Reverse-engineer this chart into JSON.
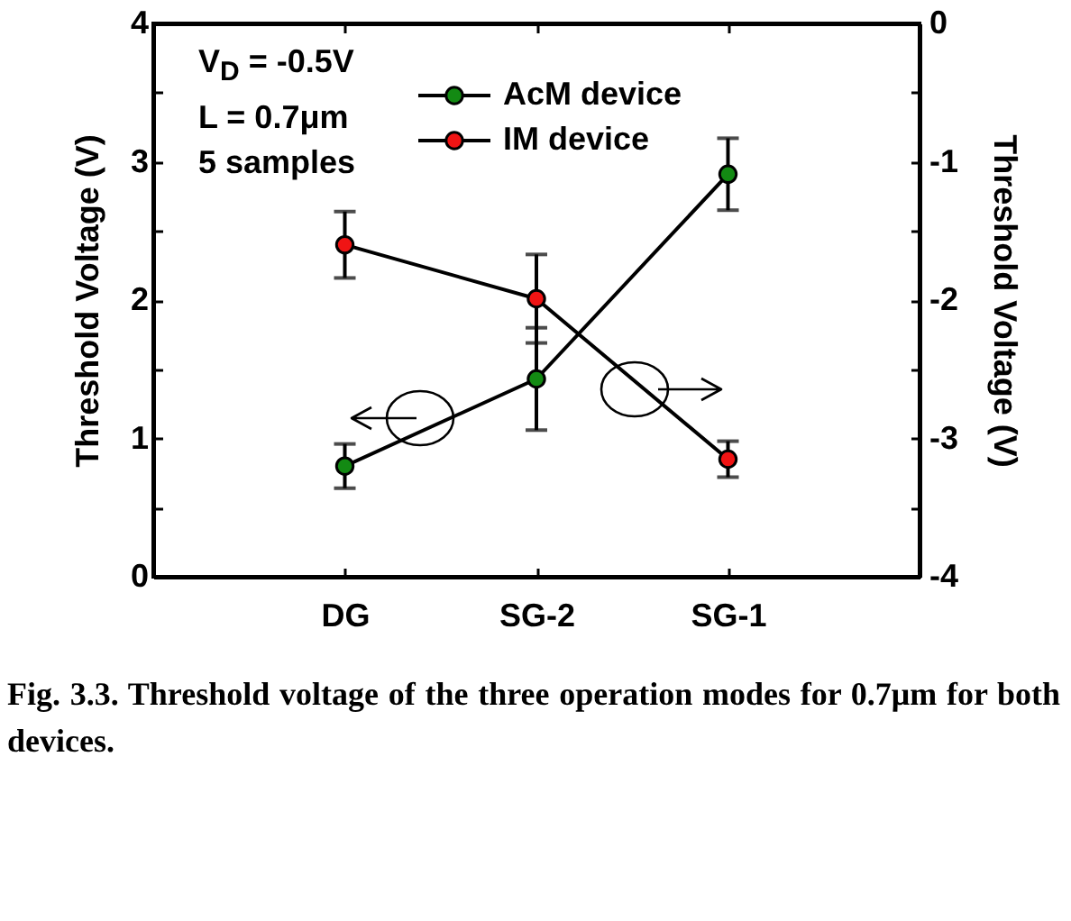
{
  "chart_data": {
    "type": "line",
    "ylabel": "Threshold Voltage (V)",
    "y2label": "Threshold Voltage (V)",
    "categories": [
      "DG",
      "SG-2",
      "SG-1"
    ],
    "series": [
      {
        "name": "AcM device",
        "color": "#138a13",
        "values": [
          0.8,
          1.43,
          2.91
        ],
        "errors": [
          0.16,
          0.37,
          0.26
        ]
      },
      {
        "name": "IM device",
        "color": "#f01414",
        "axis": "y2",
        "values": [
          -1.6,
          -1.99,
          -3.15
        ],
        "errors": [
          0.24,
          0.32,
          0.13
        ]
      }
    ],
    "ylim": [
      0,
      4
    ],
    "yticks": [
      0,
      {
        "value": 0.5,
        "label": null
      },
      1,
      {
        "value": 1.5,
        "label": null
      },
      2,
      {
        "value": 2.5,
        "label": null
      },
      3,
      {
        "value": 3.5,
        "label": null
      },
      4
    ],
    "y2lim": [
      -4,
      0
    ],
    "y2ticks": [
      -4,
      {
        "value": -3.5,
        "label": null
      },
      -3,
      {
        "value": -2.5,
        "label": null
      },
      -2,
      {
        "value": -1.5,
        "label": null
      },
      -1,
      {
        "value": -0.5,
        "label": null
      },
      0
    ],
    "marker": "circle",
    "line_style": "solid",
    "grid": false,
    "legend": "top",
    "annotations": [
      "V$_{D}$ = -0.5V",
      "L = 0.7μm",
      "5 samples",
      "Fig. 3.3. Threshold voltage of the three operation modes for 0.7μm for both devices."
    ]
  }
}
